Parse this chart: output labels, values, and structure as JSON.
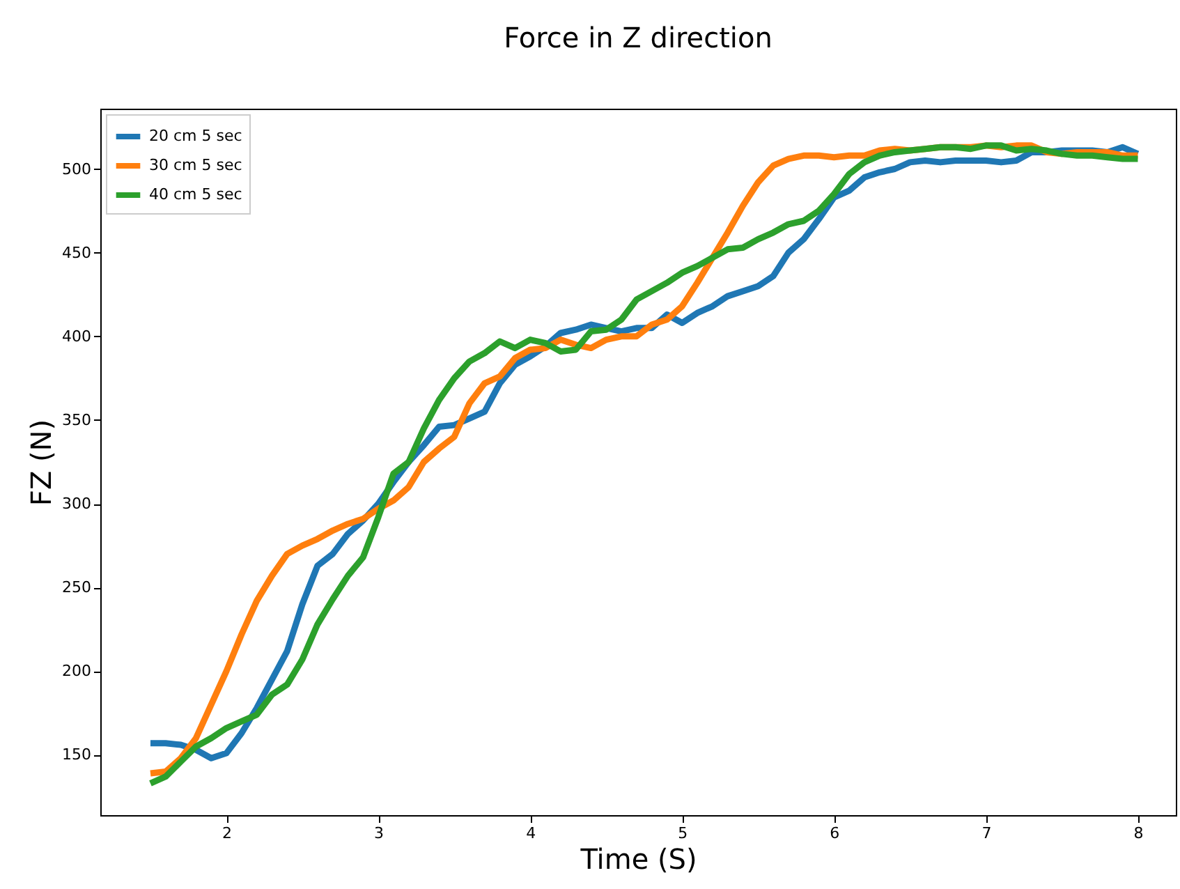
{
  "chart_data": {
    "type": "line",
    "title": "Force in Z direction",
    "xlabel": "Time (S)",
    "ylabel": "FZ (N)",
    "x": [
      1.5,
      1.6,
      1.7,
      1.8,
      1.9,
      2.0,
      2.1,
      2.2,
      2.3,
      2.4,
      2.5,
      2.6,
      2.7,
      2.8,
      2.9,
      3.0,
      3.1,
      3.2,
      3.3,
      3.4,
      3.5,
      3.6,
      3.7,
      3.8,
      3.9,
      4.0,
      4.1,
      4.2,
      4.3,
      4.4,
      4.5,
      4.6,
      4.7,
      4.8,
      4.9,
      5.0,
      5.1,
      5.2,
      5.3,
      5.4,
      5.5,
      5.6,
      5.7,
      5.8,
      5.9,
      6.0,
      6.1,
      6.2,
      6.3,
      6.4,
      6.5,
      6.6,
      6.7,
      6.8,
      6.9,
      7.0,
      7.1,
      7.2,
      7.3,
      7.4,
      7.5,
      7.6,
      7.7,
      7.8,
      7.9,
      8.0
    ],
    "series": [
      {
        "name": "20 cm 5 sec",
        "color": "#1f77b4",
        "values": [
          157,
          157,
          156,
          153,
          148,
          151,
          163,
          178,
          195,
          212,
          240,
          263,
          270,
          282,
          290,
          300,
          313,
          325,
          335,
          346,
          347,
          351,
          355,
          372,
          383,
          388,
          394,
          402,
          404,
          407,
          405,
          403,
          405,
          405,
          413,
          408,
          414,
          418,
          424,
          427,
          430,
          436,
          450,
          458,
          470,
          483,
          487,
          495,
          498,
          500,
          504,
          505,
          504,
          505,
          505,
          505,
          504,
          505,
          510,
          510,
          511,
          511,
          511,
          510,
          513,
          509
        ]
      },
      {
        "name": "30 cm 5 sec",
        "color": "#ff7f0e",
        "values": [
          139,
          140,
          148,
          160,
          180,
          200,
          222,
          242,
          257,
          270,
          275,
          279,
          284,
          288,
          291,
          297,
          302,
          310,
          325,
          333,
          340,
          360,
          372,
          376,
          387,
          392,
          393,
          398,
          395,
          393,
          398,
          400,
          400,
          407,
          410,
          418,
          432,
          447,
          462,
          478,
          492,
          502,
          506,
          508,
          508,
          507,
          508,
          508,
          511,
          512,
          511,
          512,
          513,
          513,
          513,
          514,
          513,
          514,
          514,
          510,
          509,
          510,
          510,
          510,
          508,
          508
        ]
      },
      {
        "name": "40 cm 5 sec",
        "color": "#2ca02c",
        "values": [
          133,
          137,
          146,
          155,
          160,
          166,
          170,
          174,
          186,
          192,
          207,
          228,
          243,
          257,
          268,
          292,
          318,
          325,
          345,
          362,
          375,
          385,
          390,
          397,
          393,
          398,
          396,
          391,
          392,
          403,
          404,
          410,
          422,
          427,
          432,
          438,
          442,
          447,
          452,
          453,
          458,
          462,
          467,
          469,
          475,
          485,
          497,
          504,
          508,
          510,
          511,
          512,
          513,
          513,
          512,
          514,
          514,
          511,
          512,
          511,
          509,
          508,
          508,
          507,
          506,
          506
        ]
      }
    ],
    "xlim": [
      1.17,
      8.25
    ],
    "ylim": [
      114,
      536
    ],
    "xticks": [
      2,
      3,
      4,
      5,
      6,
      7,
      8
    ],
    "yticks": [
      150,
      200,
      250,
      300,
      350,
      400,
      450,
      500
    ],
    "grid": false,
    "legend": "top left",
    "marker": "none",
    "line_style": "solid"
  }
}
